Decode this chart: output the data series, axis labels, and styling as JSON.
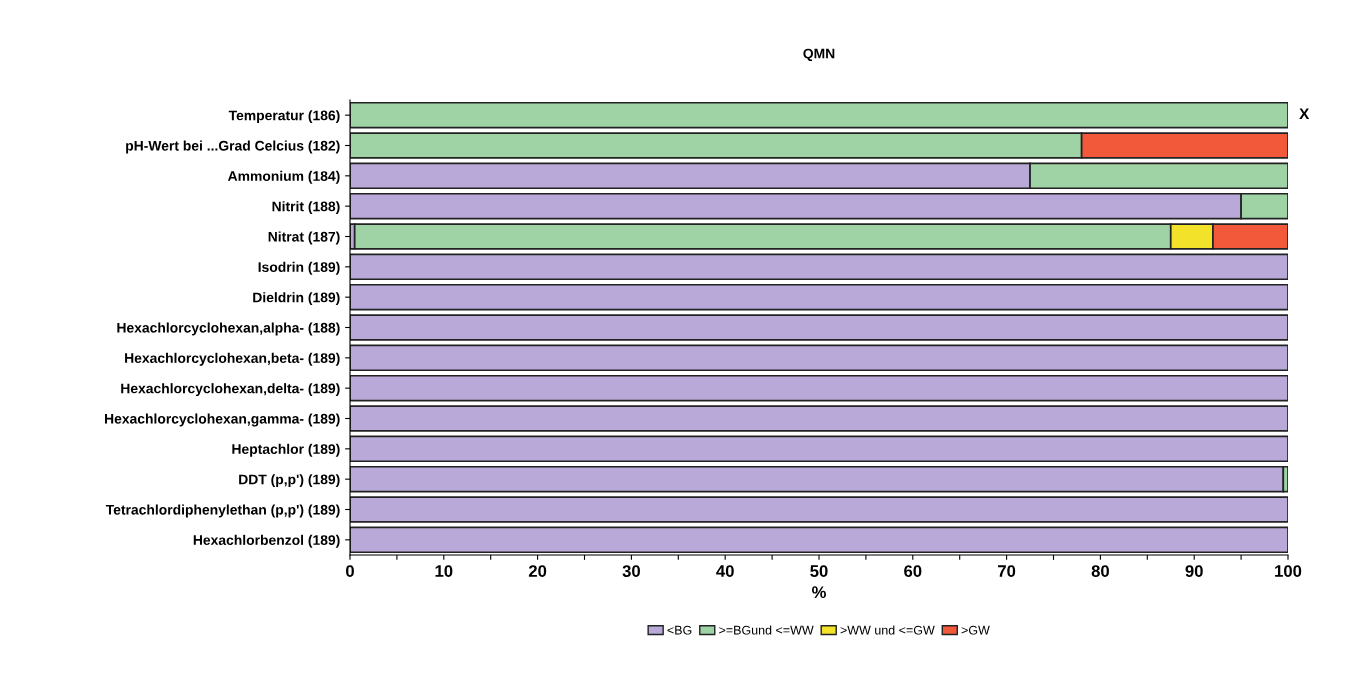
{
  "chart_data": {
    "type": "bar",
    "orientation": "horizontal",
    "stacked": true,
    "title": "QMN",
    "xlabel": "%",
    "categories": [
      "Temperatur (186)",
      "pH-Wert bei ...Grad Celcius (182)",
      "Ammonium (184)",
      "Nitrit (188)",
      "Nitrat (187)",
      "Isodrin (189)",
      "Dieldrin (189)",
      "Hexachlorcyclohexan,alpha- (188)",
      "Hexachlorcyclohexan,beta- (189)",
      "Hexachlorcyclohexan,delta- (189)",
      "Hexachlorcyclohexan,gamma- (189)",
      "Heptachlor (189)",
      "DDT (p,p') (189)",
      "Tetrachlordiphenylethan (p,p') (189)",
      "Hexachlorbenzol (189)"
    ],
    "series": [
      {
        "name": "<BG",
        "color": "#b9a9d9",
        "values": [
          0,
          0,
          72.5,
          95,
          0.5,
          100,
          100,
          100,
          100,
          100,
          100,
          100,
          99.5,
          100,
          100
        ]
      },
      {
        "name": ">=BGund <=WW",
        "color": "#9fd3a6",
        "values": [
          100,
          78,
          27.5,
          5,
          87,
          0,
          0,
          0,
          0,
          0,
          0,
          0,
          0.5,
          0,
          0
        ]
      },
      {
        "name": ">WW und <=GW",
        "color": "#f2e32a",
        "values": [
          0,
          0,
          0,
          0,
          4.5,
          0,
          0,
          0,
          0,
          0,
          0,
          0,
          0,
          0,
          0
        ]
      },
      {
        "name": ">GW",
        "color": "#f2583a",
        "values": [
          0,
          22,
          0,
          0,
          8,
          0,
          0,
          0,
          0,
          0,
          0,
          0,
          0,
          0,
          0
        ]
      }
    ],
    "xlim": [
      0,
      100
    ],
    "xticks": [
      0,
      {
        "value": 5,
        "label": null
      },
      10,
      {
        "value": 15,
        "label": null
      },
      20,
      {
        "value": 25,
        "label": null
      },
      30,
      {
        "value": 35,
        "label": null
      },
      40,
      {
        "value": 45,
        "label": null
      },
      50,
      {
        "value": 55,
        "label": null
      },
      60,
      {
        "value": 65,
        "label": null
      },
      70,
      {
        "value": 75,
        "label": null
      },
      80,
      {
        "value": 85,
        "label": null
      },
      90,
      {
        "value": 95,
        "label": null
      },
      100
    ],
    "annotations": [
      {
        "text": "X",
        "x": 100,
        "y": "Temperatur (186)"
      }
    ],
    "legend": "bottom",
    "grid": false
  }
}
